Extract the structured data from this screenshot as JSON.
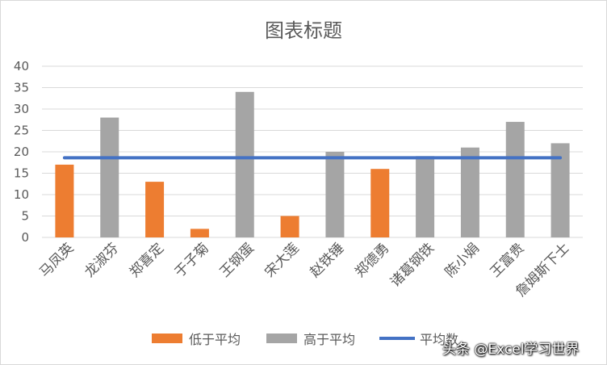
{
  "chart_data": {
    "type": "bar",
    "title": "图表标题",
    "categories": [
      "马凤英",
      "龙淑芬",
      "郑喜定",
      "于子菊",
      "王钢蛋",
      "宋大莲",
      "赵铁锤",
      "郑德勇",
      "诸葛钢铁",
      "陈小娟",
      "王富贵",
      "詹姆斯下士"
    ],
    "series": [
      {
        "name": "低于平均",
        "type": "bar",
        "color": "#ed7d31",
        "values": [
          17,
          null,
          13,
          2,
          null,
          5,
          null,
          16,
          null,
          null,
          null,
          null
        ]
      },
      {
        "name": "高于平均",
        "type": "bar",
        "color": "#a5a5a5",
        "values": [
          null,
          28,
          null,
          null,
          34,
          null,
          20,
          null,
          19,
          21,
          27,
          22
        ]
      },
      {
        "name": "平均数",
        "type": "line",
        "color": "#4472c4",
        "values": [
          18.6,
          18.6,
          18.6,
          18.6,
          18.6,
          18.6,
          18.6,
          18.6,
          18.6,
          18.6,
          18.6,
          18.6
        ]
      }
    ],
    "ylim": [
      0,
      40
    ],
    "yticks": [
      0,
      5,
      10,
      15,
      20,
      25,
      30,
      35,
      40
    ],
    "grid": true,
    "legend": "bottom"
  },
  "watermark": "头条 @Excel学习世界"
}
